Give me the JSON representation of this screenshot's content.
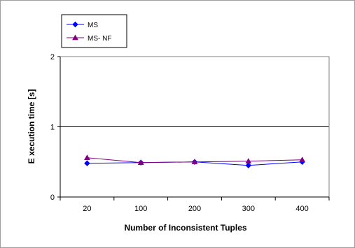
{
  "chart_data": {
    "type": "line",
    "categories": [
      "20",
      "100",
      "200",
      "300",
      "400"
    ],
    "series": [
      {
        "name": "MS",
        "values": [
          0.48,
          0.49,
          0.5,
          0.45,
          0.5
        ],
        "color": "#0000ff",
        "marker": "diamond"
      },
      {
        "name": "MS- NF",
        "values": [
          0.56,
          0.49,
          0.5,
          0.51,
          0.53
        ],
        "color": "#800080",
        "marker": "triangle"
      }
    ],
    "title": "",
    "xlabel": "Number of Inconsistent Tuples",
    "ylabel": "E xecution time [s]",
    "ylim": [
      0,
      2
    ],
    "yticks": [
      0,
      1,
      2
    ],
    "grid": "horizontal-major",
    "legend_position": "top-left"
  }
}
